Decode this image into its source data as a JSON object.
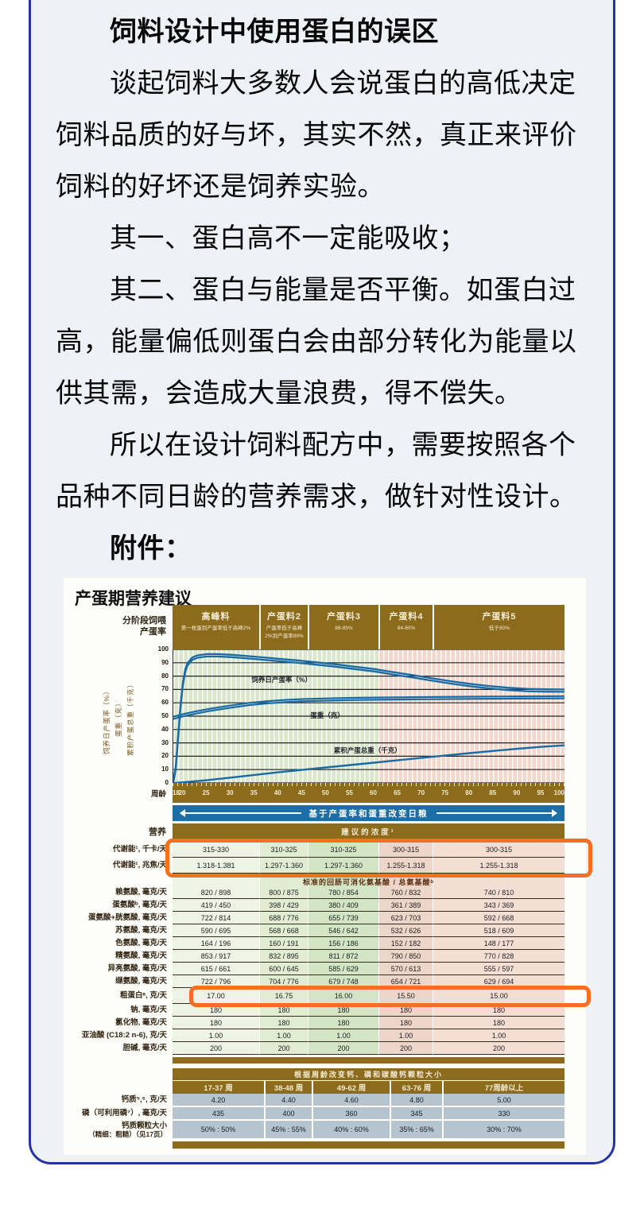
{
  "article": {
    "title": "饲料设计中使用蛋白的误区",
    "paragraphs": [
      "谈起饲料大多数人会说蛋白的高低决定饲料品质的好与坏，其实不然，真正来评价饲料的好坏还是饲养实验。",
      "其一、蛋白高不一定能吸收；",
      "其二、蛋白与能量是否平衡。如蛋白过高，能量偏低则蛋白会由部分转化为能量以供其需，会造成大量浪费，得不偿失。",
      "所以在设计饲料配方中，需要按照各个品种不同日龄的营养需求，做针对性设计。"
    ],
    "attachment_label": "附件："
  },
  "figure": {
    "title": "产蛋期营养建议",
    "stage_axis_label": [
      "分阶段饲喂",
      "产蛋率"
    ],
    "stages": [
      {
        "name": "高峰料",
        "sub": "第一枚蛋到产蛋率低于高峰2%"
      },
      {
        "name": "产蛋料2",
        "sub": "产蛋率低于高峰2%到产蛋率89%"
      },
      {
        "name": "产蛋料3",
        "sub": "88-85%"
      },
      {
        "name": "产蛋料4",
        "sub": "84-80%"
      },
      {
        "name": "产蛋料5",
        "sub": "低于80%"
      }
    ],
    "y_axis_titles": [
      "饲养日产蛋率（%）",
      "蛋重（克）",
      "累积产蛋总重（千克）"
    ],
    "x_axis_label": "周龄",
    "x_ticks": [
      18,
      20,
      25,
      30,
      35,
      40,
      45,
      50,
      55,
      60,
      65,
      70,
      75,
      80,
      85,
      90,
      95,
      100
    ],
    "y_ticks": [
      100,
      90,
      80,
      70,
      60,
      50,
      40,
      30,
      20,
      10,
      0
    ],
    "diet_band": "基于产蛋率和蛋重改变日粮",
    "nutrition_label": "营养",
    "concentration_header": "建议的浓度¹",
    "energy_rows": [
      {
        "label": "代谢能¹, 千卡/天",
        "values": [
          "315-330",
          "310-325",
          "310-325",
          "300-315",
          "300-315"
        ]
      },
      {
        "label": "代谢能¹, 兆焦/天",
        "values": [
          "1.318-1.381",
          "1.297-1.360",
          "1.297-1.360",
          "1.255-1.318",
          "1.255-1.318"
        ]
      }
    ],
    "amino_header": "标准的回肠可消化氨基酸 / 总氨基酸ᵇ",
    "amino_rows": [
      {
        "label": "赖氨酸, 毫克/天",
        "values": [
          "820 / 898",
          "800 / 875",
          "780 / 854",
          "760 / 832",
          "740 / 810"
        ]
      },
      {
        "label": "蛋氨酸ᵇ, 毫克/天",
        "values": [
          "419 / 450",
          "398 / 429",
          "380 / 409",
          "361 / 389",
          "343 / 369"
        ]
      },
      {
        "label": "蛋氨酸+胱氨酸, 毫克/天",
        "values": [
          "722 / 814",
          "688 / 776",
          "655 / 739",
          "623 / 703",
          "592 / 668"
        ]
      },
      {
        "label": "苏氨酸, 毫克/天",
        "values": [
          "590 / 695",
          "568 / 668",
          "546 / 642",
          "532 / 626",
          "518 / 609"
        ]
      },
      {
        "label": "色氨酸, 毫克/天",
        "values": [
          "164 / 196",
          "160 / 191",
          "156 / 186",
          "152 / 182",
          "148 / 177"
        ]
      },
      {
        "label": "精氨酸, 毫克/天",
        "values": [
          "853 / 917",
          "832 / 895",
          "811 / 872",
          "790 / 850",
          "770 / 828"
        ]
      },
      {
        "label": "异亮氨酸, 毫克/天",
        "values": [
          "615 / 661",
          "600 / 645",
          "585 / 629",
          "570 / 613",
          "555 / 597"
        ]
      },
      {
        "label": "缬氨酸, 毫克/天",
        "values": [
          "722 / 796",
          "704 / 776",
          "679 / 748",
          "654 / 721",
          "629 / 694"
        ]
      }
    ],
    "protein_row": {
      "label": "粗蛋白ᵃ, 克/天",
      "values": [
        "17.00",
        "16.75",
        "16.00",
        "15.50",
        "15.00"
      ]
    },
    "mineral_rows": [
      {
        "label": "钠, 毫克/天",
        "values": [
          "180",
          "180",
          "180",
          "180",
          "180"
        ]
      },
      {
        "label": "氯化物, 毫克/天",
        "values": [
          "180",
          "180",
          "180",
          "180",
          "180"
        ]
      },
      {
        "label": "亚油酸 (C18:2 n-6), 克/天",
        "values": [
          "1.00",
          "1.00",
          "1.00",
          "1.00",
          "1.00"
        ]
      },
      {
        "label": "胆碱, 毫克/天",
        "values": [
          "200",
          "200",
          "200",
          "200",
          "200"
        ]
      }
    ],
    "calcium_header": "根据周龄改变钙、磷和碳酸钙颗粒大小",
    "age_columns": [
      "17-37 周",
      "38-48 周",
      "49-62 周",
      "63-76 周",
      "77周龄以上"
    ],
    "calcium_rows": [
      {
        "label": "钙质⁵,⁶, 克/天",
        "values": [
          "4.20",
          "4.40",
          "4.60",
          "4.80",
          "5.00"
        ]
      },
      {
        "label": "磷（可利用磷⁷）, 毫克/天",
        "values": [
          "435",
          "400",
          "360",
          "345",
          "330"
        ]
      },
      {
        "label": "钙质颗粒大小",
        "label2": "（精细：粗糙）（见17页）",
        "values": [
          "50% : 50%",
          "45% : 55%",
          "40% : 60%",
          "35% : 65%",
          "30% : 70%"
        ]
      }
    ],
    "chart_data": {
      "type": "line",
      "xlabel": "周龄",
      "x_range": [
        18,
        100
      ],
      "y_range": [
        0,
        100
      ],
      "grid": true,
      "series": [
        {
          "name": "饲养日产蛋率（%）",
          "x": [
            18,
            18.5,
            19,
            19.5,
            20,
            20.5,
            21,
            22,
            23,
            25,
            27,
            30,
            33,
            36,
            40,
            44,
            48,
            52,
            56,
            60,
            64,
            68,
            72,
            76,
            80,
            84,
            88,
            92,
            96,
            100
          ],
          "y": [
            2,
            12,
            35,
            58,
            75,
            85,
            90,
            94,
            95.5,
            96.5,
            96.5,
            96,
            95.2,
            94.3,
            93,
            91.8,
            90.3,
            88.8,
            87,
            85.3,
            83,
            80.8,
            78.4,
            76.2,
            74.2,
            72.6,
            71.3,
            70.5,
            70.1,
            70
          ]
        },
        {
          "name": "蛋重（克）",
          "x": [
            18,
            20,
            23,
            26,
            30,
            34,
            38,
            42,
            46,
            50,
            55,
            60,
            70,
            80,
            90,
            100
          ],
          "y": [
            49.5,
            51.5,
            53.8,
            55.8,
            58,
            60,
            61.3,
            62.3,
            62.9,
            63.3,
            63.7,
            63.9,
            64.3,
            64.6,
            64.8,
            65
          ]
        },
        {
          "name": "累积产蛋总重（千克）",
          "x": [
            18.5,
            25,
            30,
            35,
            40,
            45,
            50,
            55,
            60,
            65,
            70,
            75,
            80,
            85,
            90,
            95,
            100
          ],
          "y": [
            0,
            2,
            4,
            6,
            8,
            9.8,
            11.6,
            13.4,
            15.2,
            17,
            18.8,
            20.6,
            22.3,
            24,
            25.6,
            27,
            28.2
          ]
        }
      ]
    },
    "colors": {
      "band_brown": "#8d6b1d",
      "band_blue": "#1d6da6",
      "highlight_orange": "#f2701f",
      "curve_blue": "#1a6ba5",
      "page_border_blue": "#2633a6"
    }
  }
}
